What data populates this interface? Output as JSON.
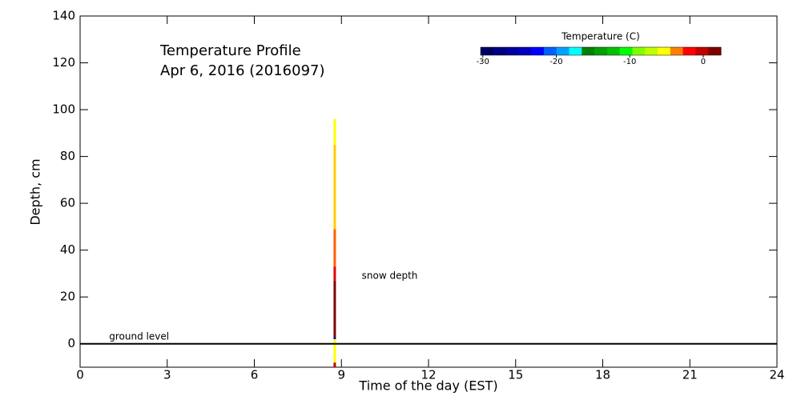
{
  "chart_data": {
    "type": "profile",
    "title": "Temperature Profile",
    "subtitle": "Apr  6, 2016 (2016097)",
    "x_label": "Time of the day (EST)",
    "y_label": "Depth, cm",
    "xlim": [
      0,
      24
    ],
    "xticks": [
      0,
      3,
      6,
      9,
      12,
      15,
      18,
      21,
      24
    ],
    "ylim": [
      -10,
      140
    ],
    "yticks": [
      0,
      20,
      40,
      60,
      80,
      100,
      120,
      140
    ],
    "ground_level": 0,
    "annotations": [
      {
        "text": "ground level",
        "x": 1,
        "y": 3
      },
      {
        "text": "snow depth",
        "x": 9.7,
        "y": 29
      }
    ],
    "profile": {
      "x": 8.77,
      "segments": [
        {
          "from": -10,
          "to": -8,
          "color": "#c00000"
        },
        {
          "from": -8,
          "to": 2,
          "color": "#ffff00"
        },
        {
          "from": 2,
          "to": 3,
          "color": "#0000c0"
        },
        {
          "from": 3,
          "to": 27,
          "color": "#800000"
        },
        {
          "from": 27,
          "to": 33,
          "color": "#e00000"
        },
        {
          "from": 33,
          "to": 49,
          "color": "#ff6000"
        },
        {
          "from": 49,
          "to": 85,
          "color": "#ffcc00"
        },
        {
          "from": 85,
          "to": 96,
          "color": "#ffff00"
        }
      ]
    },
    "colorbar": {
      "label": "Temperature (C)",
      "lim": [
        -30.3,
        2.4
      ],
      "ticks": [
        -30,
        -20,
        -10,
        0
      ],
      "colors": [
        "#000060",
        "#000080",
        "#0000a0",
        "#0000c0",
        "#0000ff",
        "#0060ff",
        "#00a0ff",
        "#00ffff",
        "#008000",
        "#00a000",
        "#00c000",
        "#00ff00",
        "#80ff00",
        "#c0ff00",
        "#ffff00",
        "#ff8000",
        "#ff0000",
        "#c00000",
        "#800000"
      ]
    }
  }
}
